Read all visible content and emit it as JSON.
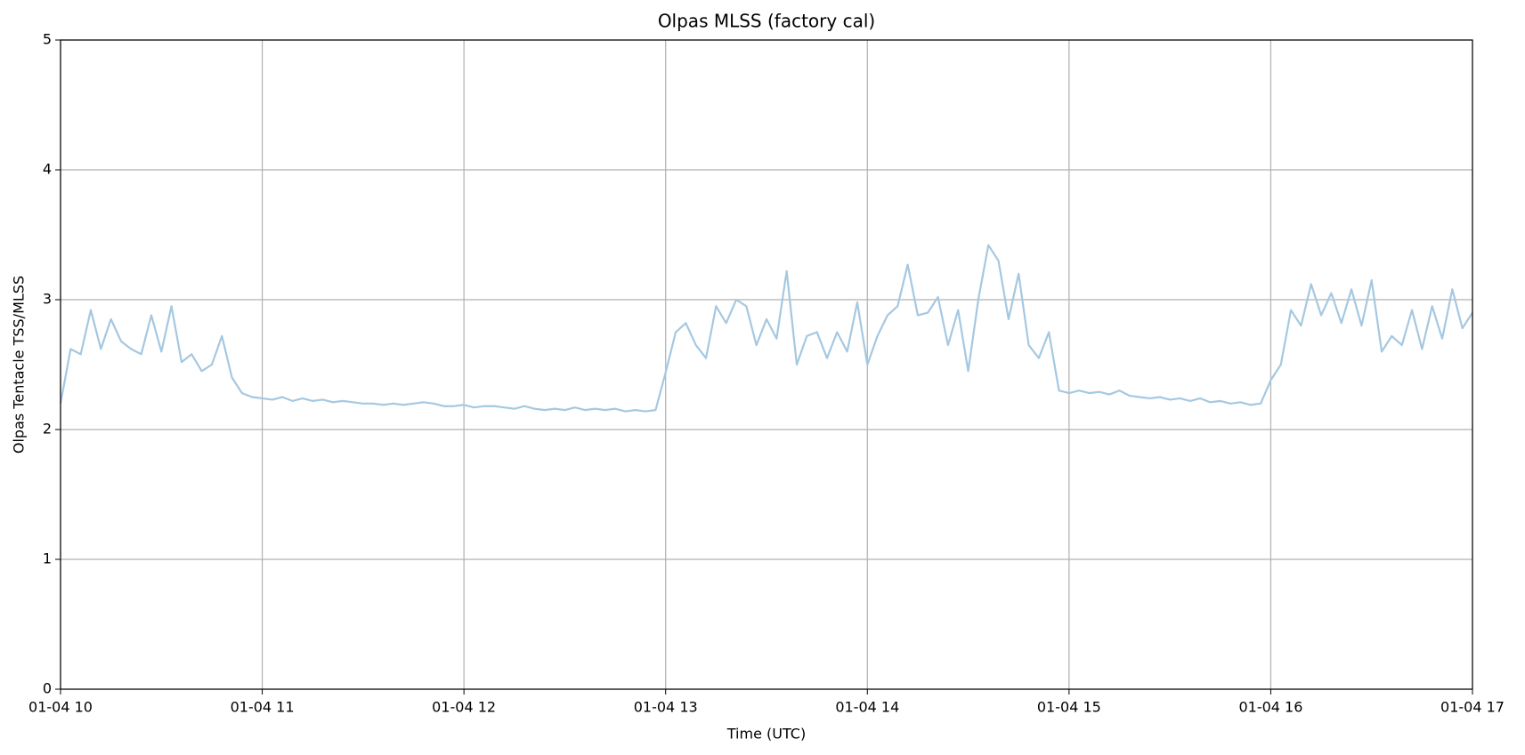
{
  "chart_data": {
    "type": "line",
    "title": "Olpas MLSS (factory cal)",
    "x_label": "Time (UTC)",
    "y_label": "Olpas Tentacle TSS/MLSS",
    "x": [
      10,
      10.05,
      10.1,
      10.15,
      10.2,
      10.25,
      10.3,
      10.35,
      10.4,
      10.45,
      10.5,
      10.55,
      10.6,
      10.65,
      10.7,
      10.75,
      10.8,
      10.85,
      10.9,
      10.95,
      11,
      11.05,
      11.1,
      11.15,
      11.2,
      11.25,
      11.3,
      11.35,
      11.4,
      11.45,
      11.5,
      11.55,
      11.6,
      11.65,
      11.7,
      11.75,
      11.8,
      11.85,
      11.9,
      11.95,
      12,
      12.05,
      12.1,
      12.15,
      12.2,
      12.25,
      12.3,
      12.35,
      12.4,
      12.45,
      12.5,
      12.55,
      12.6,
      12.65,
      12.7,
      12.75,
      12.8,
      12.85,
      12.9,
      12.95,
      13,
      13.05,
      13.1,
      13.15,
      13.2,
      13.25,
      13.3,
      13.35,
      13.4,
      13.45,
      13.5,
      13.55,
      13.6,
      13.65,
      13.7,
      13.75,
      13.8,
      13.85,
      13.9,
      13.95,
      14,
      14.05,
      14.1,
      14.15,
      14.2,
      14.25,
      14.3,
      14.35,
      14.4,
      14.45,
      14.5,
      14.55,
      14.6,
      14.65,
      14.7,
      14.75,
      14.8,
      14.85,
      14.9,
      14.95,
      15,
      15.05,
      15.1,
      15.15,
      15.2,
      15.25,
      15.3,
      15.35,
      15.4,
      15.45,
      15.5,
      15.55,
      15.6,
      15.65,
      15.7,
      15.75,
      15.8,
      15.85,
      15.9,
      15.95,
      16,
      16.05,
      16.1,
      16.15,
      16.2,
      16.25,
      16.3,
      16.35,
      16.4,
      16.45,
      16.5,
      16.55,
      16.6,
      16.65,
      16.7,
      16.75,
      16.8,
      16.85,
      16.9,
      16.95,
      17
    ],
    "values": [
      2.2,
      2.62,
      2.58,
      2.92,
      2.62,
      2.85,
      2.68,
      2.62,
      2.58,
      2.88,
      2.6,
      2.95,
      2.52,
      2.58,
      2.45,
      2.5,
      2.72,
      2.4,
      2.28,
      2.25,
      2.24,
      2.23,
      2.25,
      2.22,
      2.24,
      2.22,
      2.23,
      2.21,
      2.22,
      2.21,
      2.2,
      2.2,
      2.19,
      2.2,
      2.19,
      2.2,
      2.21,
      2.2,
      2.18,
      2.18,
      2.19,
      2.17,
      2.18,
      2.18,
      2.17,
      2.16,
      2.18,
      2.16,
      2.15,
      2.16,
      2.15,
      2.17,
      2.15,
      2.16,
      2.15,
      2.16,
      2.14,
      2.15,
      2.14,
      2.15,
      2.44,
      2.75,
      2.82,
      2.65,
      2.55,
      2.95,
      2.82,
      3.0,
      2.95,
      2.65,
      2.85,
      2.7,
      3.22,
      2.5,
      2.72,
      2.75,
      2.55,
      2.75,
      2.6,
      2.98,
      2.5,
      2.72,
      2.88,
      2.95,
      3.27,
      2.88,
      2.9,
      3.02,
      2.65,
      2.92,
      2.45,
      3.0,
      3.42,
      3.3,
      2.85,
      3.2,
      2.65,
      2.55,
      2.75,
      2.3,
      2.28,
      2.3,
      2.28,
      2.29,
      2.27,
      2.3,
      2.26,
      2.25,
      2.24,
      2.25,
      2.23,
      2.24,
      2.22,
      2.24,
      2.21,
      2.22,
      2.2,
      2.21,
      2.19,
      2.2,
      2.38,
      2.5,
      2.92,
      2.8,
      3.12,
      2.88,
      3.05,
      2.82,
      3.08,
      2.8,
      3.15,
      2.6,
      2.72,
      2.65,
      2.92,
      2.62,
      2.95,
      2.7,
      3.08,
      2.78,
      2.9
    ],
    "color": "#a5c8e1",
    "xlim": [
      10,
      17
    ],
    "xticks": [
      {
        "value": 10,
        "label": "01-04 10"
      },
      {
        "value": 11,
        "label": "01-04 11"
      },
      {
        "value": 12,
        "label": "01-04 12"
      },
      {
        "value": 13,
        "label": "01-04 13"
      },
      {
        "value": 14,
        "label": "01-04 14"
      },
      {
        "value": 15,
        "label": "01-04 15"
      },
      {
        "value": 16,
        "label": "01-04 16"
      },
      {
        "value": 17,
        "label": "01-04 17"
      }
    ],
    "ylim": [
      0,
      5
    ],
    "yticks": [
      0,
      1,
      2,
      3,
      4,
      5
    ],
    "grid": true
  }
}
